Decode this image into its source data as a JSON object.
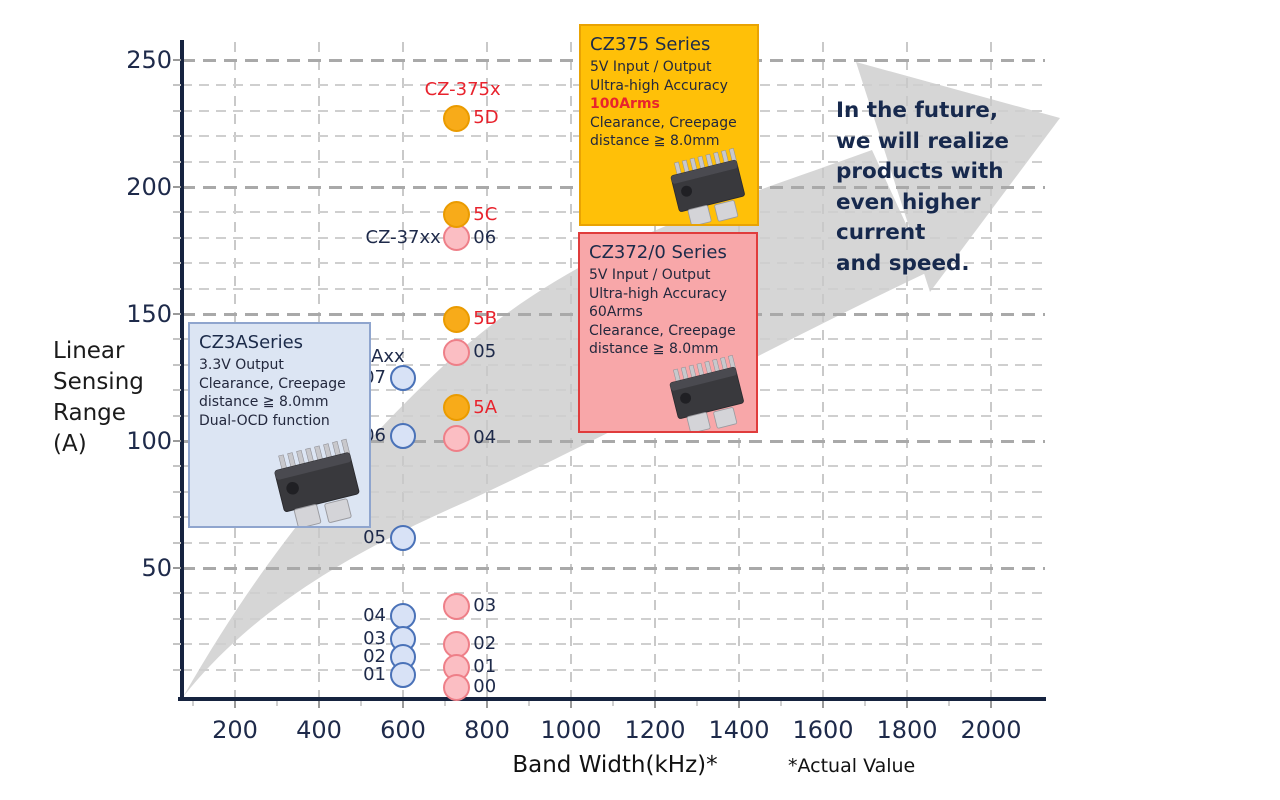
{
  "colors": {
    "navy_text": "#1e2a4a",
    "red_accent": "#e8232d",
    "orange_fill": "#f8ab19",
    "orange_stroke": "#ea9b00",
    "pink_fill": "#fbbec3",
    "pink_stroke": "#ee7f88",
    "blue_fill": "#d8e2f6",
    "blue_stroke": "#4a72b8",
    "arrow_gray": "#d6d6d6",
    "grid_major": "#a9a9a9",
    "grid_minor": "#cfcfcf"
  },
  "chart": {
    "y_axis": {
      "title_lines": [
        "Linear",
        "Sensing",
        "Range",
        "(A)"
      ],
      "ticks": [
        250,
        200,
        150,
        100,
        50
      ]
    },
    "x_axis": {
      "title": "Band Width(kHz)*",
      "footnote": "*Actual Value",
      "ticks": [
        200,
        400,
        600,
        800,
        1000,
        1200,
        1400,
        1600,
        1800,
        2000
      ]
    }
  },
  "chart_data": {
    "type": "scatter",
    "title": "",
    "xlabel": "Band Width(kHz)*",
    "ylabel": "Linear Sensing Range (A)",
    "xlim": [
      75,
      2100
    ],
    "ylim": [
      0,
      260
    ],
    "grid": "dashed, major every 50 A / 200 kHz, minor every 10 A",
    "legend_position": "none",
    "series": [
      {
        "name": "CZ3A Series (CZ-3Axx)",
        "fill": "#d8e2f6",
        "stroke": "#4a72b8",
        "radius": 13,
        "label_side": "left",
        "label_color": "navy",
        "points": [
          {
            "label": "07",
            "x": 600,
            "y": 125
          },
          {
            "label": "06",
            "x": 600,
            "y": 102
          },
          {
            "label": "05",
            "x": 600,
            "y": 62
          },
          {
            "label": "04",
            "x": 600,
            "y": 31
          },
          {
            "label": "03",
            "x": 600,
            "y": 22
          },
          {
            "label": "02",
            "x": 600,
            "y": 15
          },
          {
            "label": "01",
            "x": 600,
            "y": 8
          }
        ]
      },
      {
        "name": "CZ372/0 Series (CZ-37xx)",
        "fill": "#fbbec3",
        "stroke": "#ee7f88",
        "radius": 13.5,
        "label_side": "right",
        "label_color": "navy",
        "points": [
          {
            "label": "06",
            "x": 728,
            "y": 180
          },
          {
            "label": "05",
            "x": 728,
            "y": 135
          },
          {
            "label": "04",
            "x": 728,
            "y": 101
          },
          {
            "label": "03",
            "x": 728,
            "y": 35
          },
          {
            "label": "02",
            "x": 728,
            "y": 20
          },
          {
            "label": "01",
            "x": 728,
            "y": 11
          },
          {
            "label": "00",
            "x": 728,
            "y": 3
          }
        ]
      },
      {
        "name": "CZ375 Series (CZ-375x)",
        "fill": "#f8ab19",
        "stroke": "#ea9b00",
        "radius": 13.5,
        "label_side": "right",
        "label_color": "red",
        "points": [
          {
            "label": "5D",
            "x": 728,
            "y": 227
          },
          {
            "label": "5C",
            "x": 728,
            "y": 189
          },
          {
            "label": "5B",
            "x": 728,
            "y": 148
          },
          {
            "label": "5A",
            "x": 728,
            "y": 113
          }
        ]
      }
    ],
    "annotations": [
      {
        "text": "CZ-375x",
        "x": 742,
        "y": 238,
        "anchor": "middle",
        "color": "red"
      },
      {
        "text": "CZ-37xx",
        "x": 690,
        "y": 180,
        "anchor": "end",
        "color": "navy"
      },
      {
        "text": "Axx",
        "x": 524,
        "y": 133,
        "anchor": "start",
        "color": "navy"
      }
    ]
  },
  "callouts": {
    "cz375": {
      "title": "CZ375 Series",
      "lines": [
        "5V Input / Output",
        "Ultra-high Accuracy",
        "100Arms",
        "Clearance, Creepage",
        "distance ≧ 8.0mm"
      ],
      "highlight": "100Arms"
    },
    "cz372": {
      "title": "CZ372/0 Series",
      "lines": [
        "5V Input / Output",
        "Ultra-high Accuracy",
        "60Arms",
        "Clearance, Creepage",
        "distance ≧ 8.0mm"
      ],
      "highlight": ""
    },
    "cz3a": {
      "title": "CZ3ASeries",
      "lines": [
        "3.3V Output",
        "Clearance, Creepage",
        "distance ≧ 8.0mm",
        "Dual-OCD function"
      ],
      "highlight": ""
    }
  },
  "future_note": {
    "lines": [
      "In the future,",
      "we will realize",
      "products with",
      "even higher",
      "current",
      "and speed."
    ]
  }
}
